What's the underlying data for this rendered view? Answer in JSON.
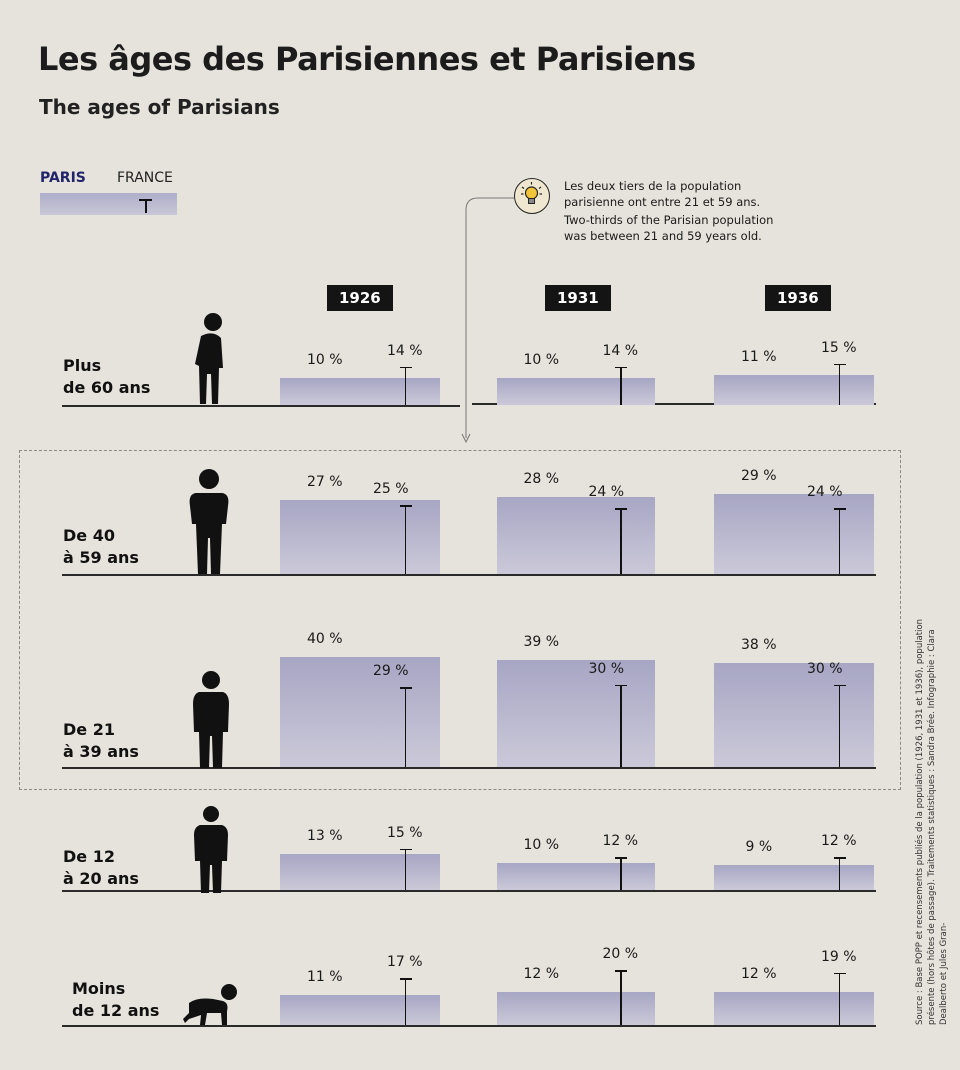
{
  "title": "Les âges des Parisiennes et Parisiens",
  "subtitle": "The ages of Parisians",
  "legend": {
    "paris": "PARIS",
    "france": "FRANCE"
  },
  "note": {
    "fr": "Les deux tiers de la population parisienne ont entre 21 et 59 ans.",
    "en": "Two-thirds of the Parisian population was between 21 and 59 years old."
  },
  "source": "Source : Base POPP et recensements publiés de la population (1926, 1931 et 1936), population présente (hors hôtes de passage). Traitements statistiques : Sandra Brée. Infographie : Clara Dealberto et Jules Gran-",
  "colors": {
    "paris_bar": "#b3b2cc",
    "france_marker": "#111111"
  },
  "chart_data": {
    "type": "bar",
    "title": "Les âges des Parisiennes et Parisiens",
    "subtitle": "The ages of Parisians",
    "unit": "%",
    "years": [
      "1926",
      "1931",
      "1936"
    ],
    "series": [
      {
        "name": "PARIS",
        "style": "bar"
      },
      {
        "name": "FRANCE",
        "style": "marker"
      }
    ],
    "groups": [
      {
        "label": "Plus de 60 ans",
        "label_lines": [
          "Plus",
          "de 60 ans"
        ],
        "icon": "elderly-person-icon",
        "paris": [
          10,
          10,
          11
        ],
        "france": [
          14,
          14,
          15
        ],
        "paris_text": [
          "10 %",
          "10 %",
          "11 %"
        ],
        "france_text": [
          "14 %",
          "14 %",
          "15 %"
        ]
      },
      {
        "label": "De 40 à 59 ans",
        "label_lines": [
          "De 40",
          "à 59 ans"
        ],
        "icon": "adult-person-icon",
        "paris": [
          27,
          28,
          29
        ],
        "france": [
          25,
          24,
          24
        ],
        "paris_text": [
          "27 %",
          "28 %",
          "29 %"
        ],
        "france_text": [
          "25 %",
          "24 %",
          "24 %"
        ]
      },
      {
        "label": "De 21 à 39 ans",
        "label_lines": [
          "De 21",
          "à 39 ans"
        ],
        "icon": "young-adult-icon",
        "paris": [
          40,
          39,
          38
        ],
        "france": [
          29,
          30,
          30
        ],
        "paris_text": [
          "40 %",
          "39 %",
          "38 %"
        ],
        "france_text": [
          "29 %",
          "30 %",
          "30 %"
        ]
      },
      {
        "label": "De 12 à 20 ans",
        "label_lines": [
          "De 12",
          "à 20 ans"
        ],
        "icon": "teenager-icon",
        "paris": [
          13,
          10,
          9
        ],
        "france": [
          15,
          12,
          12
        ],
        "paris_text": [
          "13 %",
          "10 %",
          "9 %"
        ],
        "france_text": [
          "15 %",
          "12 %",
          "12 %"
        ]
      },
      {
        "label": "Moins de 12 ans",
        "label_lines": [
          "Moins",
          "de 12 ans"
        ],
        "icon": "crawling-baby-icon",
        "paris": [
          11,
          12,
          12
        ],
        "france": [
          17,
          20,
          19
        ],
        "paris_text": [
          "11 %",
          "12 %",
          "12 %"
        ],
        "france_text": [
          "17 %",
          "20 %",
          "19 %"
        ]
      }
    ],
    "highlight": "De 21 à 59 ans",
    "legend": [
      "PARIS",
      "FRANCE"
    ]
  }
}
